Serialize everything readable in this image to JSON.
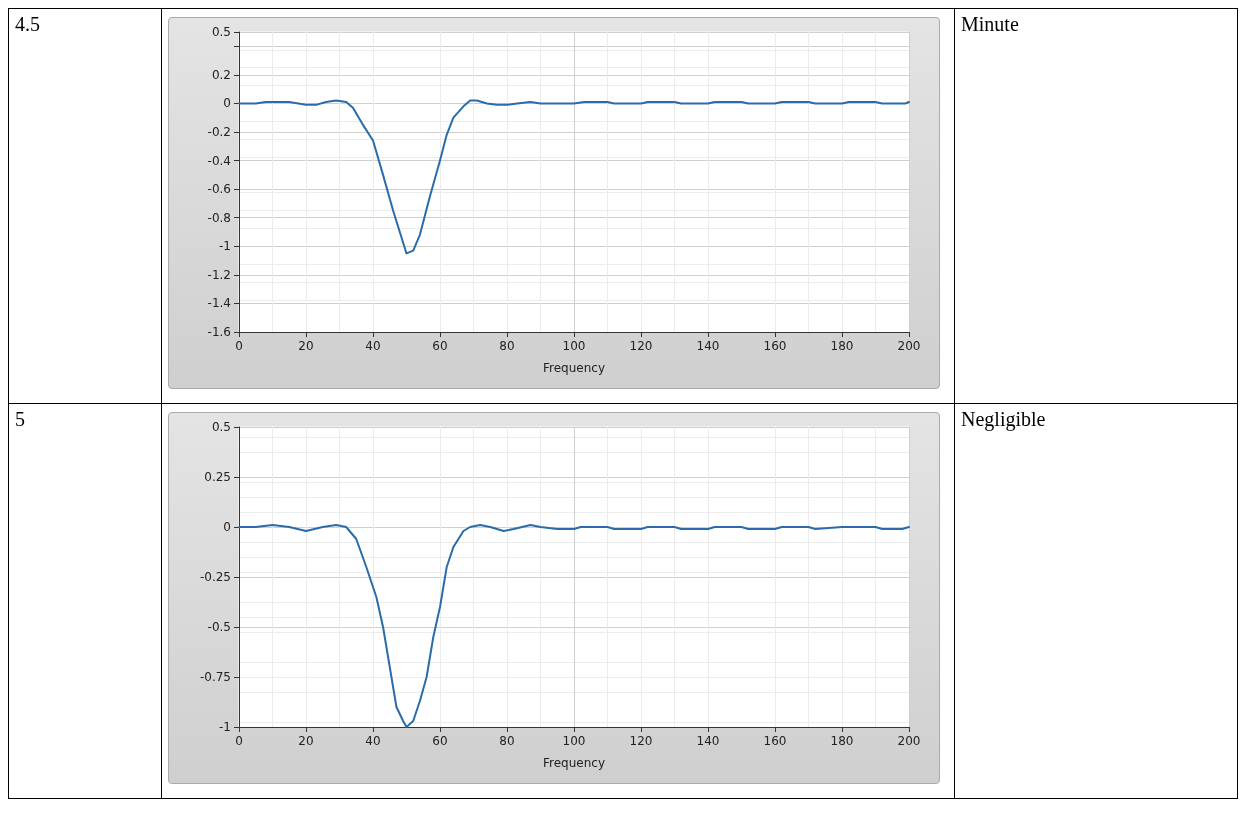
{
  "chart_data": [
    {
      "type": "line",
      "xlabel": "Frequency",
      "annotations": [
        "4.5",
        "Minute"
      ],
      "xlim": [
        0,
        200
      ],
      "xticks": [
        0,
        20,
        40,
        60,
        80,
        100,
        120,
        140,
        160,
        180,
        200
      ],
      "ylim": [
        -1.6,
        0.5
      ],
      "yticks": [
        -1.6,
        -1.4,
        -1.2,
        -1,
        -0.8,
        -0.6,
        -0.4,
        -0.2,
        0,
        0.2,
        {
          "value": 0.4,
          "label": null
        },
        0.5
      ],
      "grid": true,
      "marker": "none",
      "line_style": "solid",
      "series": [
        {
          "color": "#2b6ca8",
          "x": [
            0,
            5,
            8,
            15,
            20,
            23,
            26,
            29,
            32,
            34,
            37,
            40,
            43,
            46,
            48,
            50,
            52,
            54,
            57,
            60,
            62,
            64,
            67,
            69,
            71,
            74,
            77,
            80,
            83,
            87,
            90,
            95,
            100,
            103,
            110,
            112,
            120,
            122,
            130,
            132,
            140,
            142,
            150,
            152,
            160,
            162,
            170,
            172,
            180,
            182,
            190,
            192,
            199,
            200
          ],
          "values": [
            0,
            0,
            0.01,
            0.01,
            -0.01,
            -0.01,
            0.01,
            0.02,
            0.01,
            -0.03,
            -0.15,
            -0.26,
            -0.5,
            -0.75,
            -0.9,
            -1.05,
            -1.03,
            -0.92,
            -0.65,
            -0.4,
            -0.22,
            -0.1,
            -0.02,
            0.02,
            0.02,
            0,
            -0.01,
            -0.01,
            0,
            0.01,
            0,
            0,
            0,
            0.01,
            0.01,
            0,
            0,
            0.01,
            0.01,
            0,
            0,
            0.01,
            0.01,
            0,
            0,
            0.01,
            0.01,
            0,
            0,
            0.01,
            0.01,
            0,
            0,
            0.01
          ]
        }
      ]
    },
    {
      "type": "line",
      "xlabel": "Frequency",
      "annotations": [
        "5",
        "Negligible"
      ],
      "xlim": [
        0,
        200
      ],
      "xticks": [
        0,
        20,
        40,
        60,
        80,
        100,
        120,
        140,
        160,
        180,
        200
      ],
      "ylim": [
        -1,
        0.5
      ],
      "yticks": [
        -1,
        -0.75,
        -0.5,
        -0.25,
        0,
        0.25,
        0.5
      ],
      "grid": true,
      "marker": "none",
      "line_style": "solid",
      "series": [
        {
          "color": "#2b6ca8",
          "x": [
            0,
            5,
            10,
            15,
            20,
            25,
            29,
            32,
            35,
            38,
            41,
            43,
            45,
            47,
            49,
            50,
            52,
            54,
            56,
            58,
            60,
            62,
            64,
            67,
            69,
            72,
            75,
            79,
            82,
            87,
            90,
            95,
            100,
            102,
            110,
            112,
            120,
            122,
            130,
            132,
            140,
            142,
            150,
            152,
            160,
            162,
            170,
            172,
            180,
            190,
            192,
            198,
            200
          ],
          "values": [
            0,
            0,
            0.01,
            0,
            -0.02,
            0,
            0.01,
            0,
            -0.06,
            -0.2,
            -0.35,
            -0.5,
            -0.7,
            -0.9,
            -0.97,
            -1,
            -0.97,
            -0.87,
            -0.75,
            -0.55,
            -0.4,
            -0.2,
            -0.1,
            -0.02,
            0,
            0.01,
            0,
            -0.02,
            -0.01,
            0.01,
            0,
            -0.01,
            -0.01,
            0,
            0,
            -0.01,
            -0.01,
            0,
            0,
            -0.01,
            -0.01,
            0,
            0,
            -0.01,
            -0.01,
            0,
            0,
            -0.01,
            0,
            0,
            -0.01,
            -0.01,
            0
          ]
        }
      ]
    }
  ]
}
